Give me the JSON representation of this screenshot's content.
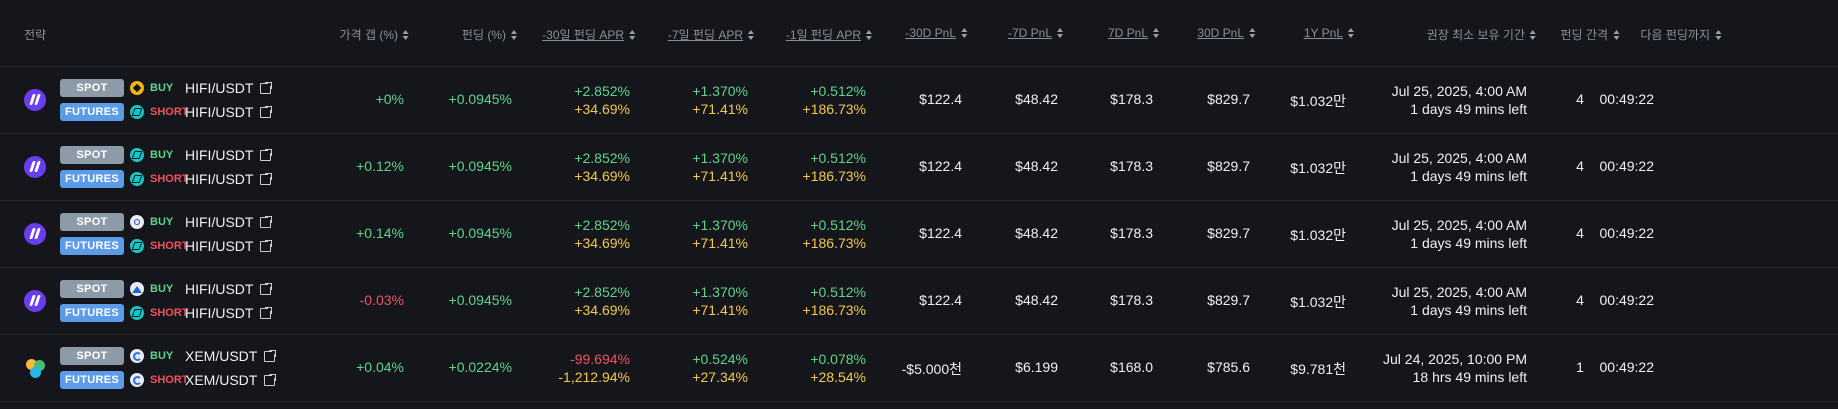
{
  "headers": {
    "strategy": "전략",
    "price_gap": "가격 갭 (%)",
    "funding": "펀딩 (%)",
    "apr_30": "-30일 펀딩 APR",
    "apr_7": "-7일 펀딩 APR",
    "apr_1": "-1일 펀딩 APR",
    "pnl_m30": "-30D PnL",
    "pnl_m7": "-7D PnL",
    "pnl_7": "7D PnL",
    "pnl_30": "30D PnL",
    "pnl_1y": "1Y PnL",
    "hold": "권장 최소 보유 기간",
    "interval": "펀딩 간격",
    "next": "다음 펀딩까지"
  },
  "colors": {
    "green": "#5fd48a",
    "red": "#f0525f",
    "yellow": "#f4c84a",
    "spot_badge": "#8d9aa7",
    "futures_badge": "#5b9be8"
  },
  "rows": [
    {
      "coin_icon": "hifi-icon",
      "spot": {
        "badge": "SPOT",
        "exchange_icon": "binance-icon",
        "side": "BUY",
        "pair": "HIFI/USDT"
      },
      "futures": {
        "badge": "FUTURES",
        "exchange_icon": "bitget-icon",
        "side": "SHORT",
        "pair": "HIFI/USDT"
      },
      "price_gap": "+0%",
      "price_gap_tone": "green",
      "funding": "+0.0945%",
      "apr_30": {
        "a": "+2.852%",
        "a_tone": "green",
        "b": "+34.69%"
      },
      "apr_7": {
        "a": "+1.370%",
        "b": "+71.41%"
      },
      "apr_1": {
        "a": "+0.512%",
        "b": "+186.73%"
      },
      "pnl_m30": "$122.4",
      "pnl_m7": "$48.42",
      "pnl_7": "$178.3",
      "pnl_30": "$829.7",
      "pnl_1y": "$1.032만",
      "hold_date": "Jul 25, 2025, 4:00 AM",
      "hold_left": "1 days 49 mins left",
      "interval": "4",
      "next": "00:49:22"
    },
    {
      "coin_icon": "hifi-icon",
      "spot": {
        "badge": "SPOT",
        "exchange_icon": "bitget-icon",
        "side": "BUY",
        "pair": "HIFI/USDT"
      },
      "futures": {
        "badge": "FUTURES",
        "exchange_icon": "bitget-icon",
        "side": "SHORT",
        "pair": "HIFI/USDT"
      },
      "price_gap": "+0.12%",
      "price_gap_tone": "green",
      "funding": "+0.0945%",
      "apr_30": {
        "a": "+2.852%",
        "a_tone": "green",
        "b": "+34.69%"
      },
      "apr_7": {
        "a": "+1.370%",
        "b": "+71.41%"
      },
      "apr_1": {
        "a": "+0.512%",
        "b": "+186.73%"
      },
      "pnl_m30": "$122.4",
      "pnl_m7": "$48.42",
      "pnl_7": "$178.3",
      "pnl_30": "$829.7",
      "pnl_1y": "$1.032만",
      "hold_date": "Jul 25, 2025, 4:00 AM",
      "hold_left": "1 days 49 mins left",
      "interval": "4",
      "next": "00:49:22"
    },
    {
      "coin_icon": "hifi-icon",
      "spot": {
        "badge": "SPOT",
        "exchange_icon": "okx-icon",
        "side": "BUY",
        "pair": "HIFI/USDT"
      },
      "futures": {
        "badge": "FUTURES",
        "exchange_icon": "bitget-icon",
        "side": "SHORT",
        "pair": "HIFI/USDT"
      },
      "price_gap": "+0.14%",
      "price_gap_tone": "green",
      "funding": "+0.0945%",
      "apr_30": {
        "a": "+2.852%",
        "a_tone": "green",
        "b": "+34.69%"
      },
      "apr_7": {
        "a": "+1.370%",
        "b": "+71.41%"
      },
      "apr_1": {
        "a": "+0.512%",
        "b": "+186.73%"
      },
      "pnl_m30": "$122.4",
      "pnl_m7": "$48.42",
      "pnl_7": "$178.3",
      "pnl_30": "$829.7",
      "pnl_1y": "$1.032만",
      "hold_date": "Jul 25, 2025, 4:00 AM",
      "hold_left": "1 days 49 mins left",
      "interval": "4",
      "next": "00:49:22"
    },
    {
      "coin_icon": "hifi-icon",
      "spot": {
        "badge": "SPOT",
        "exchange_icon": "mexc-icon",
        "side": "BUY",
        "pair": "HIFI/USDT"
      },
      "futures": {
        "badge": "FUTURES",
        "exchange_icon": "bitget-icon",
        "side": "SHORT",
        "pair": "HIFI/USDT"
      },
      "price_gap": "-0.03%",
      "price_gap_tone": "red",
      "funding": "+0.0945%",
      "apr_30": {
        "a": "+2.852%",
        "a_tone": "green",
        "b": "+34.69%"
      },
      "apr_7": {
        "a": "+1.370%",
        "b": "+71.41%"
      },
      "apr_1": {
        "a": "+0.512%",
        "b": "+186.73%"
      },
      "pnl_m30": "$122.4",
      "pnl_m7": "$48.42",
      "pnl_7": "$178.3",
      "pnl_30": "$829.7",
      "pnl_1y": "$1.032만",
      "hold_date": "Jul 25, 2025, 4:00 AM",
      "hold_left": "1 days 49 mins left",
      "interval": "4",
      "next": "00:49:22"
    },
    {
      "coin_icon": "xem-icon",
      "spot": {
        "badge": "SPOT",
        "exchange_icon": "gate-icon",
        "side": "BUY",
        "pair": "XEM/USDT"
      },
      "futures": {
        "badge": "FUTURES",
        "exchange_icon": "gate-icon",
        "side": "SHORT",
        "pair": "XEM/USDT"
      },
      "price_gap": "+0.04%",
      "price_gap_tone": "green",
      "funding": "+0.0224%",
      "apr_30": {
        "a": "-99.694%",
        "a_tone": "red",
        "b": "-1,212.94%"
      },
      "apr_7": {
        "a": "+0.524%",
        "b": "+27.34%"
      },
      "apr_1": {
        "a": "+0.078%",
        "b": "+28.54%"
      },
      "pnl_m30": "-$5.000천",
      "pnl_m7": "$6.199",
      "pnl_7": "$168.0",
      "pnl_30": "$785.6",
      "pnl_1y": "$9.781천",
      "hold_date": "Jul 24, 2025, 10:00 PM",
      "hold_left": "18 hrs 49 mins left",
      "interval": "1",
      "next": "00:49:22"
    }
  ]
}
